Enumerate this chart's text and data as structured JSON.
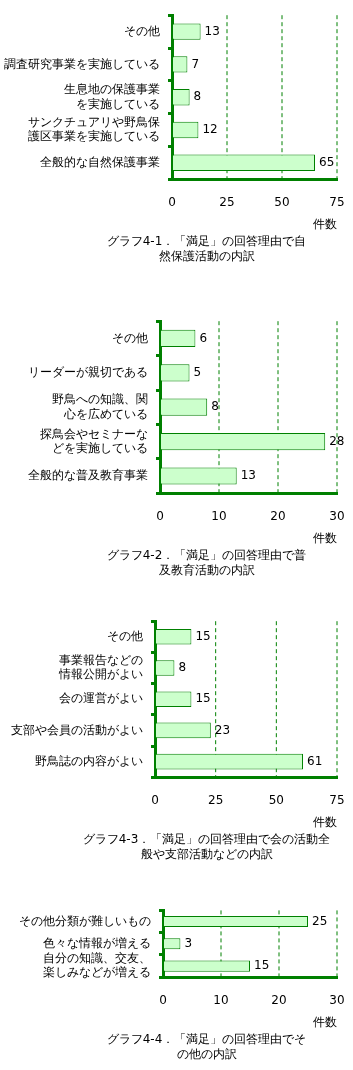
{
  "chart_data": [
    {
      "type": "bar",
      "orientation": "horizontal",
      "title": "グラフ4-1．「満足」の回答理由で自然保護活動の内訳",
      "xlabel": "件数",
      "categories": [
        "その他",
        "調査研究事業を実施している",
        "生息地の保護事業を実施している",
        "サンクチュアリや野鳥保護区事業を実施している",
        "全般的な自然保護事業"
      ],
      "values": [
        13,
        7,
        8,
        12,
        65
      ],
      "color": "#ccffcc",
      "xlim": [
        0,
        75
      ],
      "xticks": [
        0,
        25,
        50,
        75
      ],
      "grid": "x",
      "data_labels": true
    },
    {
      "type": "bar",
      "orientation": "horizontal",
      "title": "グラフ4-2．「満足」の回答理由で普及教育活動の内訳",
      "xlabel": "件数",
      "categories": [
        "その他",
        "リーダーが親切である",
        "野鳥への知識、関心を広めている",
        "探鳥会やセミナーなどを実施している",
        "全般的な普及教育事業"
      ],
      "values": [
        6,
        5,
        8,
        28,
        13
      ],
      "color": "#ccffcc",
      "xlim": [
        0,
        30
      ],
      "xticks": [
        0,
        10,
        20,
        30
      ],
      "grid": "x",
      "data_labels": true
    },
    {
      "type": "bar",
      "orientation": "horizontal",
      "title": "グラフ4-3．「満足」の回答理由で会の活動全般や支部活動などの内訳",
      "xlabel": "件数",
      "categories": [
        "その他",
        "事業報告などの情報公開がよい",
        "会の運営がよい",
        "支部や会員の活動がよい",
        "野鳥誌の内容がよい"
      ],
      "values": [
        15,
        8,
        15,
        23,
        61
      ],
      "color": "#ccffcc",
      "xlim": [
        0,
        75
      ],
      "xticks": [
        0,
        25,
        50,
        75
      ],
      "grid": "x",
      "data_labels": true
    },
    {
      "type": "bar",
      "orientation": "horizontal",
      "title": "グラフ4-4．「満足」の回答理由でその他の内訳",
      "xlabel": "件数",
      "categories": [
        "その他分類が難しいもの",
        "色々な情報が増える",
        "自分の知識、交友、楽しみなどが増える"
      ],
      "values": [
        25,
        3,
        15
      ],
      "color": "#ccffcc",
      "xlim": [
        0,
        30
      ],
      "xticks": [
        0,
        10,
        20,
        30
      ],
      "grid": "x",
      "data_labels": true
    }
  ]
}
